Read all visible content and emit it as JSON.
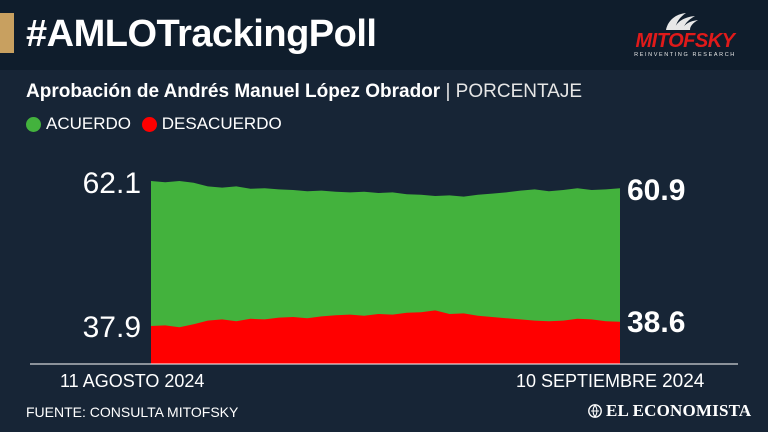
{
  "header": {
    "headline": "#AMLOTrackingPoll",
    "logo_name": "MITOFSKY",
    "logo_tagline": "REINVENTING RESEARCH"
  },
  "subtitle": {
    "main": "Aprobación de Andrés Manuel López Obrador",
    "separator": "|",
    "unit": "PORCENTAJE"
  },
  "colors": {
    "background": "#172536",
    "header": "#0f1d2c",
    "accent": "#c8a060",
    "acuerdo": "#43b23d",
    "desacuerdo": "#ff0000"
  },
  "chart_data": {
    "type": "area",
    "x_start_label": "11 AGOSTO 2024",
    "x_end_label_date": "10 SEPTIEMBRE",
    "x_end_label_year": "2024",
    "ylim": [
      30,
      70
    ],
    "grid": false,
    "legend_position": "top-left",
    "series": [
      {
        "name": "ACUERDO",
        "start_label": "62.1",
        "end_label": "60.9",
        "values": [
          62.1,
          61.9,
          62.1,
          61.8,
          61.2,
          61.0,
          61.2,
          60.8,
          60.9,
          60.7,
          60.6,
          60.4,
          60.5,
          60.3,
          60.2,
          60.3,
          60.1,
          60.2,
          59.9,
          59.8,
          59.6,
          59.7,
          59.5,
          59.8,
          60.0,
          60.2,
          60.5,
          60.7,
          60.4,
          60.6,
          60.9,
          60.6,
          60.7,
          60.9
        ]
      },
      {
        "name": "DESACUERDO",
        "start_label": "37.9",
        "end_label": "38.6",
        "values": [
          37.9,
          38.0,
          37.7,
          38.2,
          38.8,
          39.0,
          38.7,
          39.1,
          39.0,
          39.3,
          39.4,
          39.2,
          39.5,
          39.7,
          39.8,
          39.6,
          39.9,
          39.8,
          40.1,
          40.2,
          40.5,
          39.9,
          40.0,
          39.6,
          39.4,
          39.2,
          39.0,
          38.8,
          38.7,
          38.8,
          39.1,
          39.0,
          38.7,
          38.6
        ]
      }
    ]
  },
  "footer": {
    "source": "FUENTE: CONSULTA MITOFSKY",
    "brand": "EL ECONOMISTA"
  }
}
